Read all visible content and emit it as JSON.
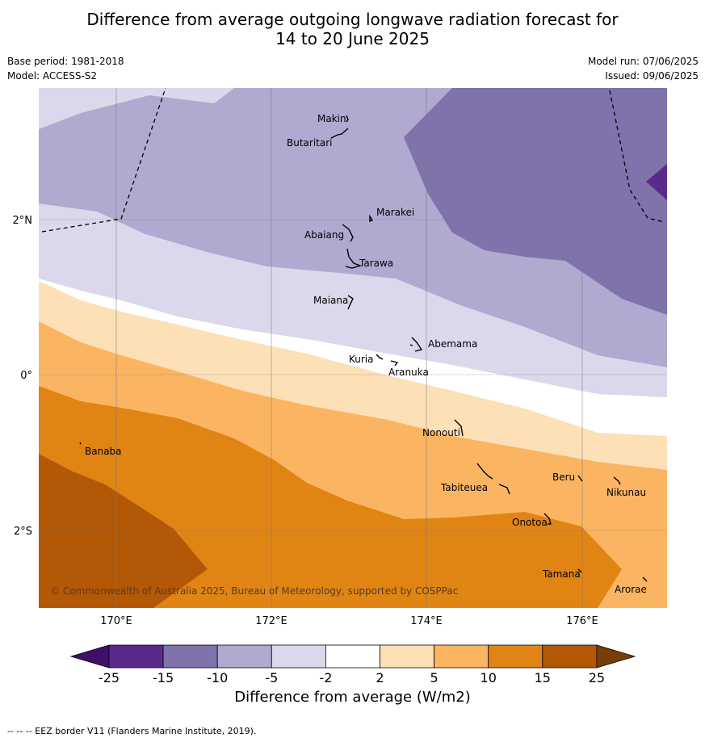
{
  "title_line1": "Difference from average outgoing longwave radiation forecast for",
  "title_line2": "14 to 20 June 2025",
  "base_period": "Base period: 1981-2018",
  "model": "Model: ACCESS-S2",
  "model_run": "Model run: 07/06/2025",
  "issued": "Issued: 09/06/2025",
  "lat_labels": [
    "2°N",
    "0°",
    "2°S"
  ],
  "lon_labels": [
    "170°E",
    "172°E",
    "174°E",
    "176°E"
  ],
  "places": [
    "Makin",
    "Butaritari",
    "Marakei",
    "Abaiang",
    "Tarawa",
    "Maiana",
    "Abemama",
    "Kuria",
    "Aranuka",
    "Nonouti",
    "Banaba",
    "Tabiteuea",
    "Beru",
    "Nikunau",
    "Onotoa",
    "Tamana",
    "Arorae"
  ],
  "copyright": "© Commonwealth of Australia 2025, Bureau of Meteorology, supported by COSPPac",
  "colorbar": {
    "ticks": [
      "-25",
      "-15",
      "-10",
      "-5",
      "-2",
      "2",
      "5",
      "10",
      "15",
      "25"
    ],
    "colors": [
      "#3f0f6b",
      "#5a2a8a",
      "#8072ab",
      "#b0a9d0",
      "#d9d9eb",
      "#ffffff",
      "#fde0b6",
      "#fbb562",
      "#e08414",
      "#b35807",
      "#7a3d06"
    ],
    "title": "Difference from average (W/m2)"
  },
  "footer": "--  --  -- EEZ border V11 (Flanders Marine Institute, 2019)."
}
